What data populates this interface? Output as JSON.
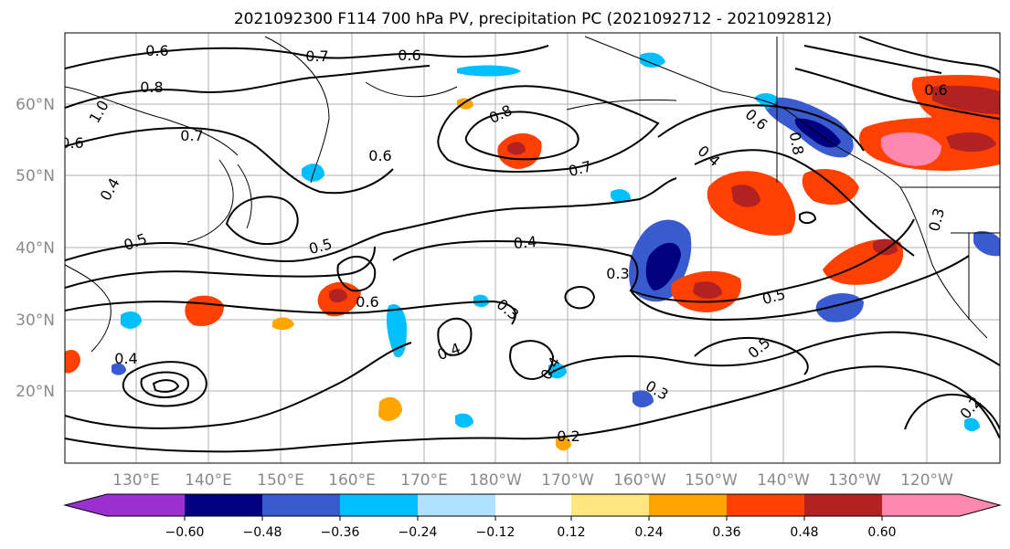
{
  "title": "2021092300 F114 700 hPa PV, precipitation PC (2021092712 - 2021092812)",
  "lat_labels": [
    "60°N",
    "50°N",
    "40°N",
    "30°N",
    "20°N"
  ],
  "lon_labels": [
    "130°E",
    "140°E",
    "150°E",
    "160°E",
    "170°E",
    "180°W",
    "170°W",
    "160°W",
    "150°W",
    "140°W",
    "130°W",
    "120°W"
  ],
  "colorbar": {
    "tick_labels": [
      "−0.60",
      "−0.48",
      "−0.36",
      "−0.24",
      "−0.12",
      "0.12",
      "0.24",
      "0.36",
      "0.48",
      "0.60"
    ],
    "colors": [
      "#9b30d0",
      "#000080",
      "#3a5bd0",
      "#00bfff",
      "#b0e2ff",
      "#ffffff",
      "#ffe680",
      "#ffa500",
      "#ff4000",
      "#b22222",
      "#ff88b0"
    ]
  },
  "contour_labels": [
    "0.6",
    "0.7",
    "0.6",
    "0.8",
    "1.0",
    "0.7",
    "0.6",
    "0.8",
    "0.7",
    "0.6",
    "0.4",
    "0.5",
    "0.5",
    "0.4",
    "0.3",
    "0.6",
    "0.3",
    "0.4",
    "0.5",
    "0.5",
    "0.4",
    "0.3",
    "0.2",
    "0.4",
    "0.6",
    "0.8",
    "0.4",
    "0.3",
    "0.6",
    "0.2"
  ]
}
